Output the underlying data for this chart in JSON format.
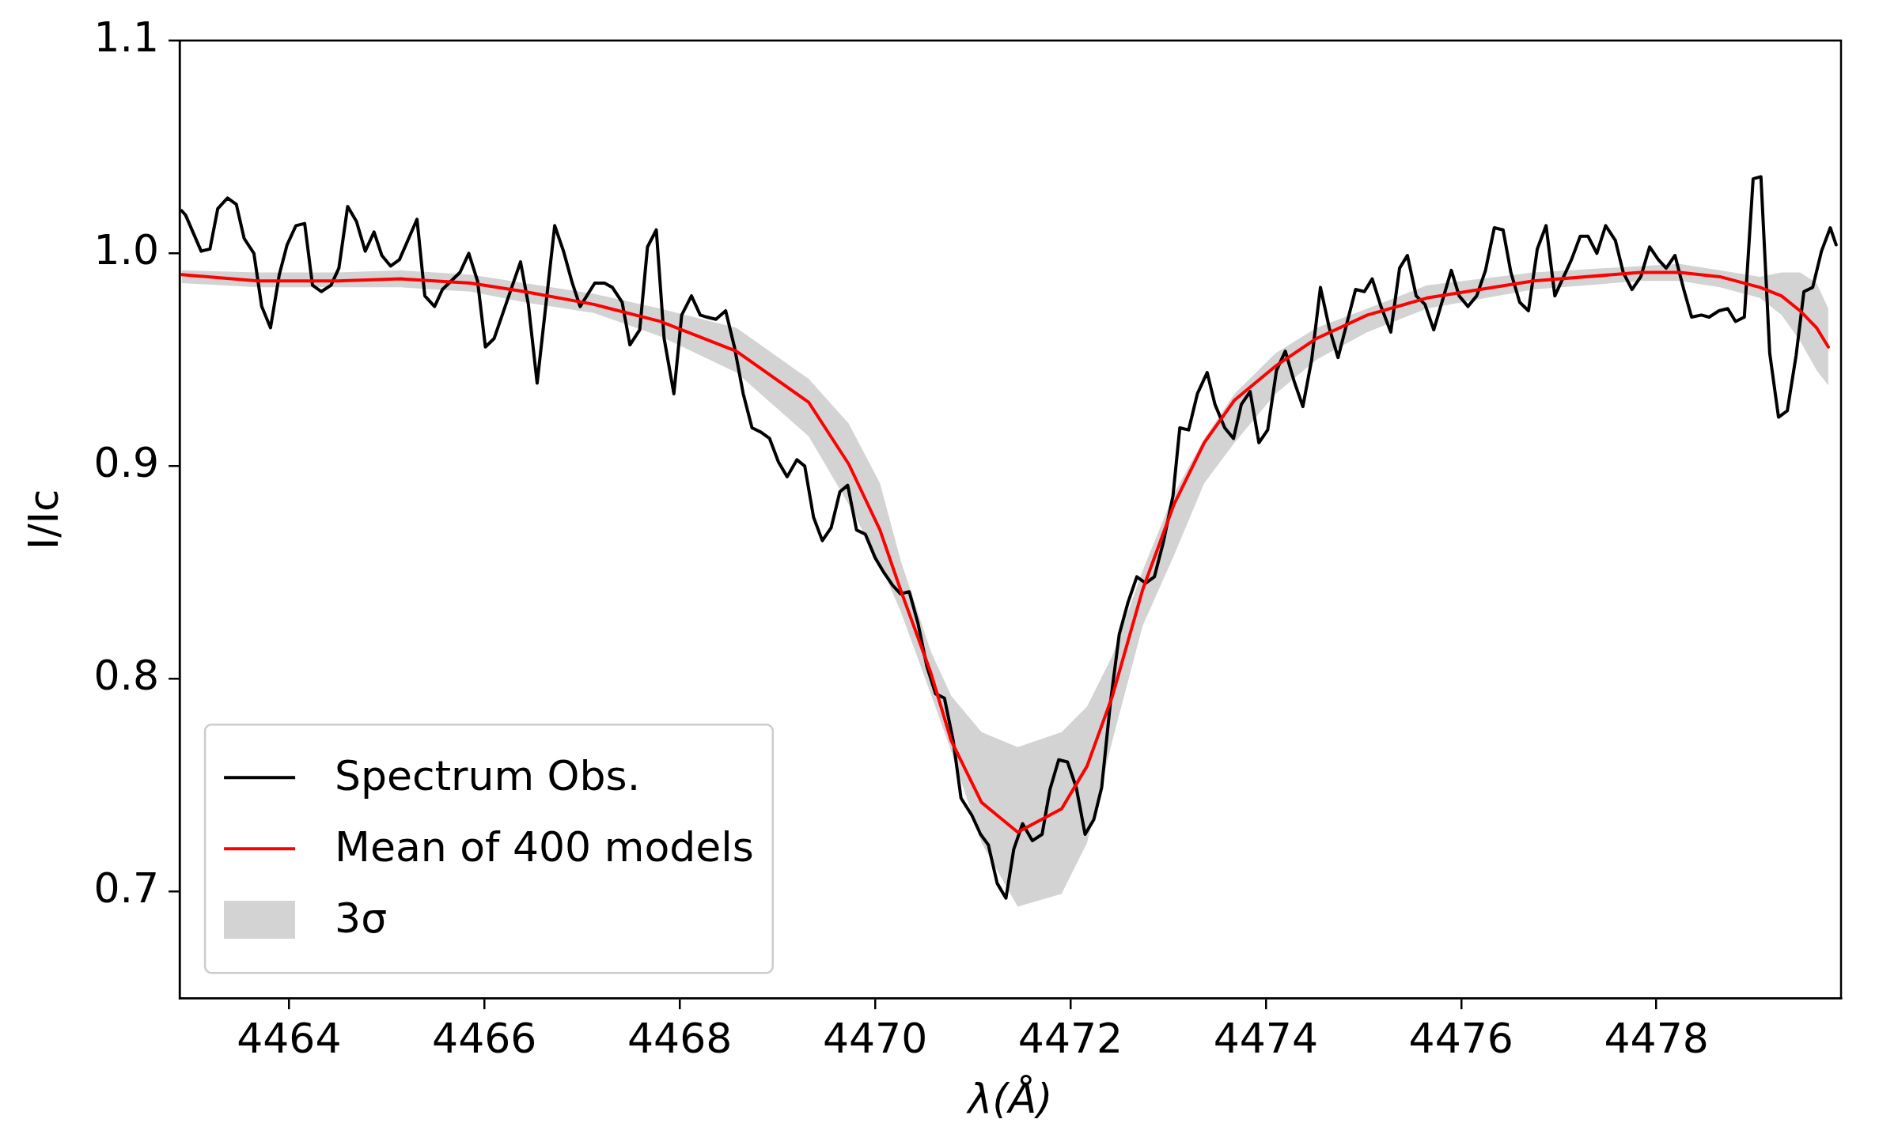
{
  "chart_data": {
    "type": "line",
    "xlabel": "λ(Å)",
    "ylabel": "I/Ic",
    "xlim": [
      4462.88,
      4479.89
    ],
    "xticks": [
      4464,
      4466,
      4468,
      4470,
      4472,
      4474,
      4476,
      4478
    ],
    "ylim": [
      0.65,
      1.1
    ],
    "yticks": [
      {
        "value": 0.7,
        "label": "0.7"
      },
      {
        "value": 0.8,
        "label": "0.8"
      },
      {
        "value": 0.9,
        "label": "0.9"
      },
      {
        "value": 1.0,
        "label": "1.0"
      },
      {
        "value": 1.1,
        "label": "1.1"
      }
    ],
    "legend": "bottom left",
    "annotations": [
      "3σ"
    ],
    "marker": "none",
    "line_style": "solid",
    "series": [
      {
        "name": "Spectrum Obs.",
        "color": "#000000",
        "x": [
          4462.9,
          4462.94,
          4463.1,
          4463.19,
          4463.27,
          4463.37,
          4463.46,
          4463.54,
          4463.64,
          4463.72,
          4463.81,
          4463.9,
          4463.98,
          4464.07,
          4464.16,
          4464.24,
          4464.33,
          4464.43,
          4464.51,
          4464.6,
          4464.69,
          4464.78,
          4464.87,
          4464.95,
          4465.04,
          4465.13,
          4465.31,
          4465.39,
          4465.49,
          4465.57,
          4465.75,
          4465.84,
          4465.93,
          4466.01,
          4466.1,
          4466.37,
          4466.45,
          4466.54,
          4466.72,
          4466.81,
          4466.9,
          4466.98,
          4467.13,
          4467.23,
          4467.31,
          4467.41,
          4467.49,
          4467.59,
          4467.67,
          4467.76,
          4467.84,
          4467.94,
          4468.02,
          4468.12,
          4468.21,
          4468.28,
          4468.37,
          4468.47,
          4468.56,
          4468.65,
          4468.74,
          4468.83,
          4468.92,
          4469.01,
          4469.1,
          4469.2,
          4469.28,
          4469.37,
          4469.46,
          4469.55,
          4469.64,
          4469.72,
          4469.81,
          4469.9,
          4470.0,
          4470.09,
          4470.18,
          4470.26,
          4470.35,
          4470.44,
          4470.53,
          4470.62,
          4470.71,
          4470.8,
          4470.88,
          4470.99,
          4471.08,
          4471.16,
          4471.25,
          4471.34,
          4471.42,
          4471.51,
          4471.61,
          4471.71,
          4471.79,
          4471.88,
          4471.97,
          4472.06,
          4472.15,
          4472.24,
          4472.32,
          4472.41,
          4472.5,
          4472.59,
          4472.68,
          4472.77,
          4472.86,
          4472.95,
          4473.05,
          4473.12,
          4473.21,
          4473.3,
          4473.4,
          4473.48,
          4473.58,
          4473.67,
          4473.75,
          4473.84,
          4473.93,
          4474.02,
          4474.11,
          4474.2,
          4474.29,
          4474.38,
          4474.47,
          4474.56,
          4474.65,
          4474.74,
          4474.83,
          4474.92,
          4475.01,
          4475.09,
          4475.18,
          4475.28,
          4475.37,
          4475.45,
          4475.54,
          4475.63,
          4475.72,
          4475.9,
          4475.98,
          4476.07,
          4476.16,
          4476.25,
          4476.34,
          4476.43,
          4476.51,
          4476.6,
          4476.69,
          4476.78,
          4476.87,
          4476.96,
          4477.13,
          4477.22,
          4477.3,
          4477.39,
          4477.48,
          4477.58,
          4477.66,
          4477.75,
          4477.84,
          4477.93,
          4478.02,
          4478.1,
          4478.19,
          4478.28,
          4478.36,
          4478.46,
          4478.54,
          4478.64,
          4478.73,
          4478.81,
          4478.9,
          4478.99,
          4479.07,
          4479.16,
          4479.25,
          4479.34,
          4479.43,
          4479.51,
          4479.6,
          4479.69,
          4479.78,
          4479.84
        ],
        "values": [
          1.02,
          1.018,
          1.001,
          1.002,
          1.021,
          1.026,
          1.023,
          1.007,
          1.0,
          0.975,
          0.965,
          0.99,
          1.004,
          1.013,
          1.014,
          0.985,
          0.982,
          0.985,
          0.993,
          1.022,
          1.015,
          1.001,
          1.01,
          0.999,
          0.994,
          0.997,
          1.016,
          0.98,
          0.975,
          0.983,
          0.991,
          1.0,
          0.987,
          0.956,
          0.96,
          0.996,
          0.976,
          0.939,
          1.013,
          1.001,
          0.986,
          0.975,
          0.986,
          0.986,
          0.984,
          0.977,
          0.957,
          0.964,
          1.003,
          1.011,
          0.96,
          0.934,
          0.971,
          0.98,
          0.971,
          0.97,
          0.969,
          0.973,
          0.956,
          0.934,
          0.918,
          0.916,
          0.913,
          0.902,
          0.895,
          0.903,
          0.9,
          0.876,
          0.865,
          0.871,
          0.888,
          0.891,
          0.87,
          0.868,
          0.857,
          0.85,
          0.844,
          0.84,
          0.841,
          0.826,
          0.806,
          0.793,
          0.791,
          0.771,
          0.744,
          0.736,
          0.727,
          0.722,
          0.704,
          0.697,
          0.72,
          0.732,
          0.724,
          0.727,
          0.748,
          0.762,
          0.761,
          0.749,
          0.727,
          0.734,
          0.749,
          0.789,
          0.821,
          0.836,
          0.848,
          0.845,
          0.848,
          0.864,
          0.886,
          0.918,
          0.917,
          0.934,
          0.944,
          0.929,
          0.918,
          0.913,
          0.929,
          0.935,
          0.911,
          0.917,
          0.945,
          0.954,
          0.94,
          0.928,
          0.95,
          0.984,
          0.965,
          0.951,
          0.967,
          0.983,
          0.982,
          0.988,
          0.975,
          0.963,
          0.993,
          0.999,
          0.98,
          0.976,
          0.964,
          0.992,
          0.98,
          0.975,
          0.98,
          0.992,
          1.012,
          1.011,
          0.991,
          0.977,
          0.973,
          1.002,
          1.013,
          0.98,
          0.997,
          1.008,
          1.008,
          1.0,
          1.013,
          1.006,
          0.991,
          0.983,
          0.989,
          1.003,
          0.997,
          0.993,
          0.999,
          0.983,
          0.97,
          0.971,
          0.97,
          0.973,
          0.974,
          0.968,
          0.97,
          1.035,
          1.036,
          0.953,
          0.923,
          0.926,
          0.952,
          0.982,
          0.984,
          1.001,
          1.012,
          1.004
        ]
      },
      {
        "name": "Mean of 400 models",
        "color": "#ff0000",
        "x": [
          4462.9,
          4463.68,
          4464.5,
          4465.15,
          4465.86,
          4466.41,
          4467.12,
          4467.8,
          4468.58,
          4469.32,
          4469.73,
          4470.05,
          4470.26,
          4470.57,
          4470.78,
          4471.09,
          4471.46,
          4471.91,
          4472.17,
          4472.43,
          4472.74,
          4473.06,
          4473.37,
          4473.68,
          4474.1,
          4474.52,
          4475.04,
          4475.65,
          4476.74,
          4477.83,
          4478.24,
          4478.65,
          4479.06,
          4479.28,
          4479.47,
          4479.64,
          4479.76
        ],
        "values": [
          0.99,
          0.987,
          0.987,
          0.988,
          0.986,
          0.982,
          0.976,
          0.968,
          0.954,
          0.93,
          0.901,
          0.87,
          0.842,
          0.803,
          0.771,
          0.742,
          0.728,
          0.739,
          0.759,
          0.792,
          0.842,
          0.882,
          0.911,
          0.931,
          0.947,
          0.96,
          0.971,
          0.979,
          0.987,
          0.991,
          0.991,
          0.989,
          0.984,
          0.98,
          0.973,
          0.965,
          0.956
        ],
        "lower": [
          0.986,
          0.984,
          0.984,
          0.984,
          0.982,
          0.977,
          0.972,
          0.961,
          0.944,
          0.914,
          0.882,
          0.854,
          0.832,
          0.793,
          0.766,
          0.723,
          0.693,
          0.699,
          0.723,
          0.771,
          0.825,
          0.858,
          0.892,
          0.911,
          0.934,
          0.95,
          0.963,
          0.974,
          0.983,
          0.987,
          0.987,
          0.984,
          0.979,
          0.971,
          0.959,
          0.945,
          0.938
        ],
        "upper": [
          0.992,
          0.991,
          0.991,
          0.992,
          0.99,
          0.986,
          0.981,
          0.974,
          0.965,
          0.941,
          0.92,
          0.892,
          0.856,
          0.813,
          0.792,
          0.775,
          0.768,
          0.775,
          0.787,
          0.811,
          0.851,
          0.887,
          0.913,
          0.934,
          0.953,
          0.965,
          0.974,
          0.985,
          0.991,
          0.994,
          0.995,
          0.992,
          0.989,
          0.991,
          0.991,
          0.986,
          0.974
        ]
      }
    ]
  }
}
